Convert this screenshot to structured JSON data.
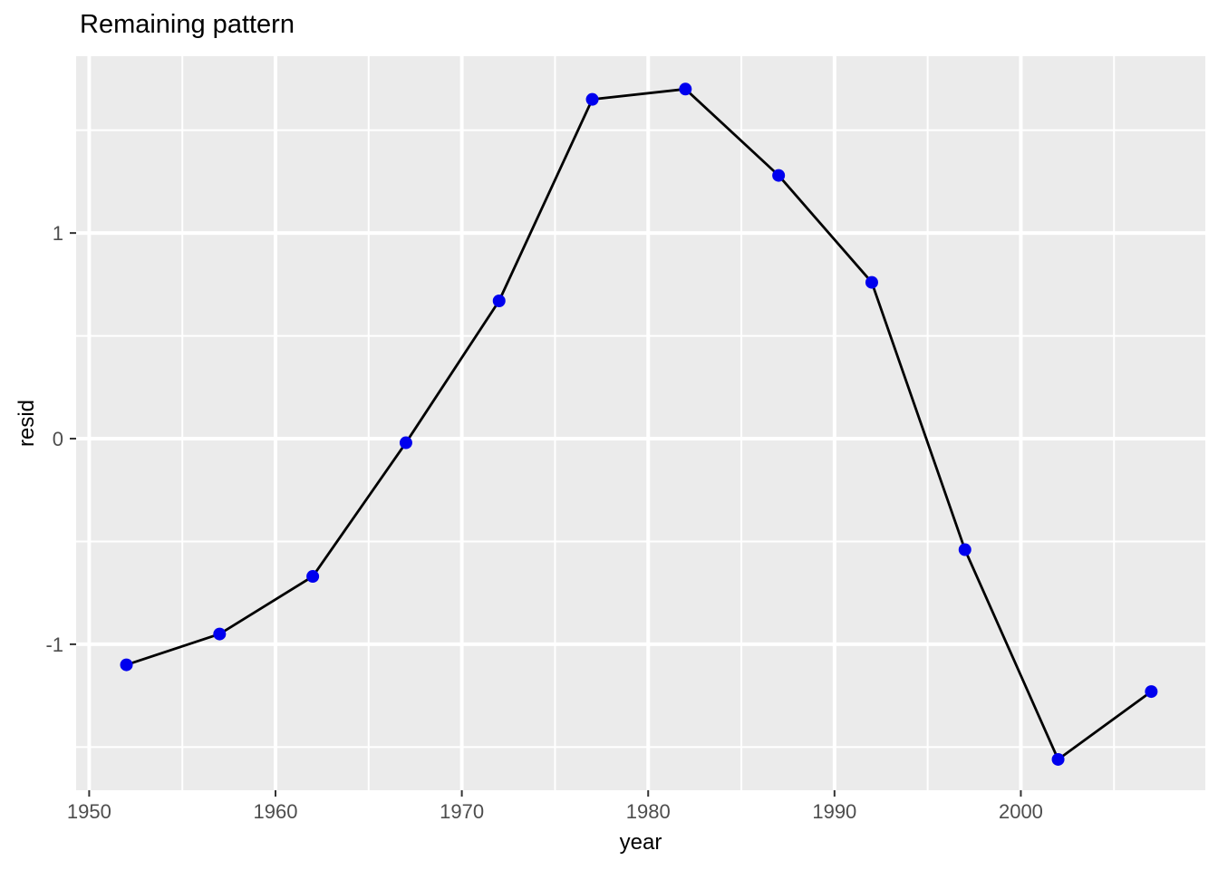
{
  "title": "Remaining pattern",
  "chart_data": {
    "type": "line",
    "title": "Remaining pattern",
    "xlabel": "year",
    "ylabel": "resid",
    "x": [
      1952,
      1957,
      1962,
      1967,
      1972,
      1977,
      1982,
      1987,
      1992,
      1997,
      2002,
      2007
    ],
    "values": [
      -1.1,
      -0.95,
      -0.67,
      -0.02,
      0.67,
      1.65,
      1.7,
      1.28,
      0.76,
      -0.54,
      -1.56,
      -1.23
    ],
    "series_name": "resid",
    "xlim": [
      1949.3,
      2009.9
    ],
    "ylim": [
      -1.71,
      1.86
    ],
    "x_major_ticks": [
      1950,
      1960,
      1970,
      1980,
      1990,
      2000
    ],
    "x_minor_ticks": [
      1955,
      1965,
      1975,
      1985,
      1995,
      2005
    ],
    "y_major_ticks": [
      -1,
      0,
      1
    ],
    "y_minor_ticks": [
      -1.5,
      -0.5,
      0.5,
      1.5
    ],
    "grid": true,
    "legend": "none",
    "colors": {
      "point": "#0000EE",
      "line": "#000000",
      "panel_bg": "#EBEBEB",
      "grid": "#FFFFFF",
      "tick_label": "#4D4D4D",
      "tick_mark": "#333333",
      "title_text": "#000000"
    }
  }
}
